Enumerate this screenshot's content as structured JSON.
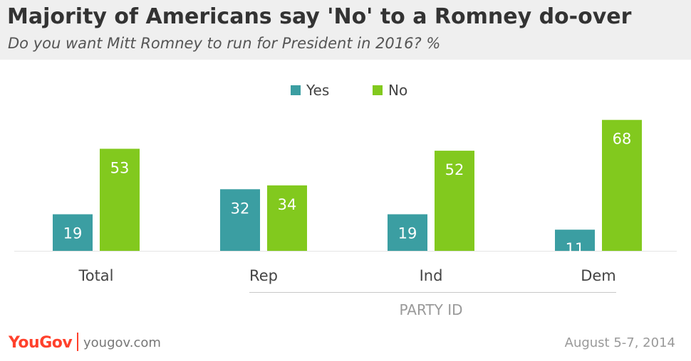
{
  "header": {
    "title": "Majority of Americans say 'No' to a Romney do-over",
    "subtitle": "Do you want Mitt Romney to run for President in 2016? %"
  },
  "chart_data": {
    "type": "bar",
    "categories": [
      "Total",
      "Rep",
      "Ind",
      "Dem"
    ],
    "series": [
      {
        "name": "Yes",
        "values": [
          19,
          32,
          19,
          11
        ],
        "color": "#3b9ea2"
      },
      {
        "name": "No",
        "values": [
          53,
          34,
          52,
          68
        ],
        "color": "#82c91e"
      }
    ],
    "group_label": "PARTY ID",
    "group_categories": [
      "Rep",
      "Ind",
      "Dem"
    ],
    "ylim": [
      0,
      70
    ],
    "grid": false,
    "legend_position": "top-center",
    "data_label_color": "#ffffff"
  },
  "footer": {
    "brand": "YouGov",
    "url": "yougov.com",
    "date": "August 5-7, 2014"
  }
}
